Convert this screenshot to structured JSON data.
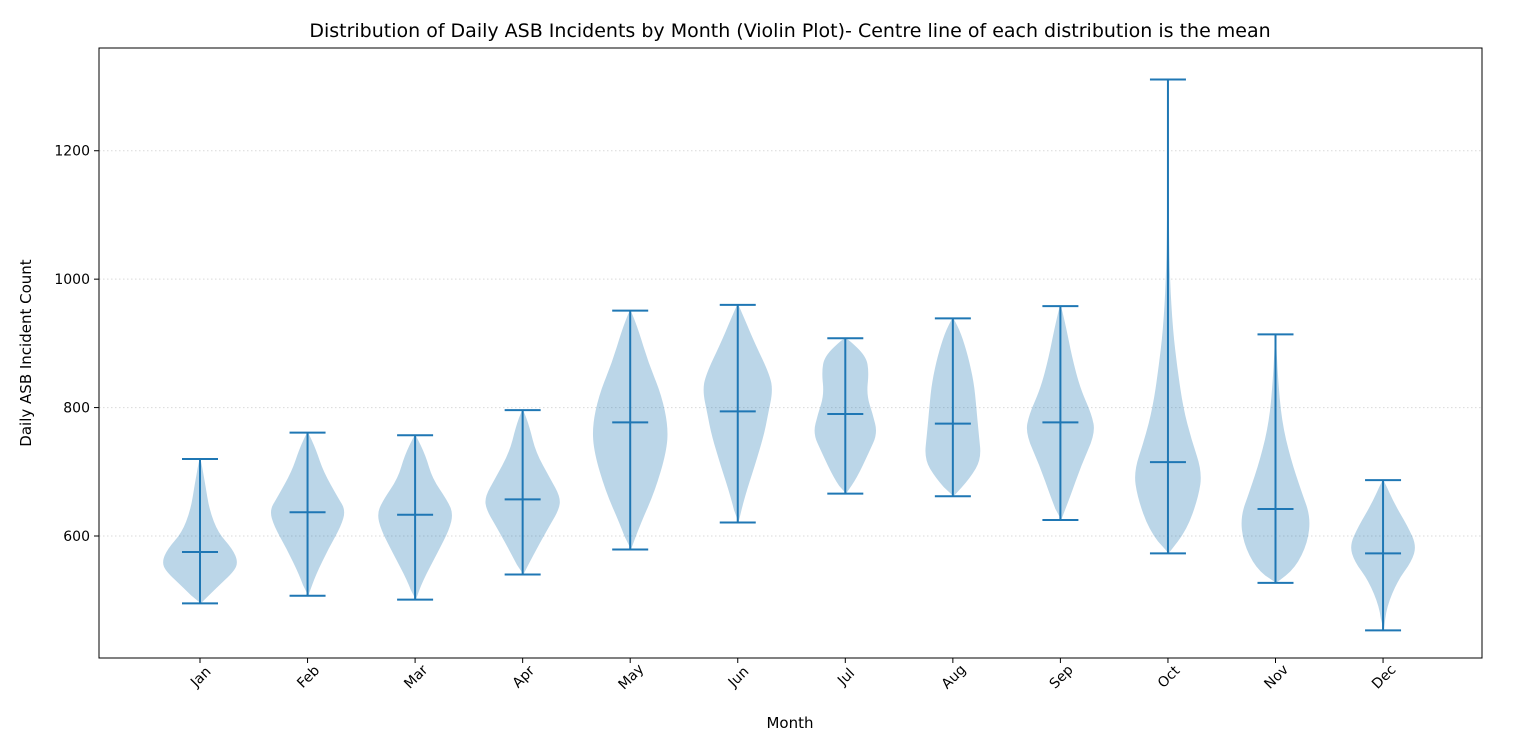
{
  "chart_data": {
    "type": "violin",
    "title": "Distribution of Daily ASB Incidents by Month (Violin Plot)- Centre line of each distribution is the mean",
    "xlabel": "Month",
    "ylabel": "Daily ASB Incident Count",
    "categories": [
      "Jan",
      "Feb",
      "Mar",
      "Apr",
      "May",
      "Jun",
      "Jul",
      "Aug",
      "Sep",
      "Oct",
      "Nov",
      "Dec"
    ],
    "ylim": [
      410,
      1360
    ],
    "yticks": [
      600,
      800,
      1000,
      1200
    ],
    "grid": "y-dotted",
    "colors": {
      "violin_fill": "#1f77b4",
      "violin_alpha": 0.3,
      "line": "#1f77b4",
      "grid": "#d9d9d9",
      "axis": "#000000"
    },
    "series": [
      {
        "category": "Jan",
        "min": 495,
        "mean": 575,
        "max": 720,
        "density": [
          [
            495,
            0.02
          ],
          [
            520,
            0.45
          ],
          [
            545,
            0.9
          ],
          [
            560,
            1.0
          ],
          [
            580,
            0.85
          ],
          [
            605,
            0.48
          ],
          [
            640,
            0.25
          ],
          [
            680,
            0.14
          ],
          [
            720,
            0.02
          ]
        ]
      },
      {
        "category": "Feb",
        "min": 507,
        "mean": 637,
        "max": 761,
        "density": [
          [
            507,
            0.02
          ],
          [
            540,
            0.22
          ],
          [
            580,
            0.55
          ],
          [
            615,
            0.88
          ],
          [
            640,
            1.0
          ],
          [
            660,
            0.8
          ],
          [
            700,
            0.42
          ],
          [
            735,
            0.22
          ],
          [
            761,
            0.02
          ]
        ]
      },
      {
        "category": "Mar",
        "min": 501,
        "mean": 633,
        "max": 757,
        "density": [
          [
            501,
            0.02
          ],
          [
            530,
            0.2
          ],
          [
            575,
            0.6
          ],
          [
            610,
            0.9
          ],
          [
            635,
            1.0
          ],
          [
            655,
            0.85
          ],
          [
            690,
            0.45
          ],
          [
            725,
            0.28
          ],
          [
            757,
            0.02
          ]
        ]
      },
      {
        "category": "Apr",
        "min": 540,
        "mean": 657,
        "max": 796,
        "density": [
          [
            540,
            0.02
          ],
          [
            570,
            0.28
          ],
          [
            610,
            0.65
          ],
          [
            640,
            0.95
          ],
          [
            660,
            1.0
          ],
          [
            690,
            0.72
          ],
          [
            730,
            0.35
          ],
          [
            770,
            0.18
          ],
          [
            796,
            0.02
          ]
        ]
      },
      {
        "category": "May",
        "min": 579,
        "mean": 777,
        "max": 951,
        "density": [
          [
            579,
            0.02
          ],
          [
            620,
            0.28
          ],
          [
            670,
            0.65
          ],
          [
            730,
            0.95
          ],
          [
            770,
            1.0
          ],
          [
            820,
            0.82
          ],
          [
            870,
            0.48
          ],
          [
            920,
            0.22
          ],
          [
            951,
            0.02
          ]
        ]
      },
      {
        "category": "Jun",
        "min": 621,
        "mean": 794,
        "max": 960,
        "density": [
          [
            621,
            0.02
          ],
          [
            660,
            0.18
          ],
          [
            710,
            0.45
          ],
          [
            755,
            0.68
          ],
          [
            790,
            0.8
          ],
          [
            825,
            0.92
          ],
          [
            850,
            0.85
          ],
          [
            900,
            0.45
          ],
          [
            935,
            0.2
          ],
          [
            960,
            0.02
          ]
        ]
      },
      {
        "category": "Jul",
        "min": 666,
        "mean": 790,
        "max": 908,
        "density": [
          [
            666,
            0.02
          ],
          [
            690,
            0.3
          ],
          [
            730,
            0.62
          ],
          [
            760,
            0.85
          ],
          [
            790,
            0.72
          ],
          [
            820,
            0.56
          ],
          [
            855,
            0.62
          ],
          [
            880,
            0.55
          ],
          [
            908,
            0.05
          ]
        ]
      },
      {
        "category": "Aug",
        "min": 662,
        "mean": 775,
        "max": 939,
        "density": [
          [
            662,
            0.02
          ],
          [
            690,
            0.45
          ],
          [
            720,
            0.75
          ],
          [
            760,
            0.68
          ],
          [
            800,
            0.62
          ],
          [
            840,
            0.55
          ],
          [
            880,
            0.4
          ],
          [
            915,
            0.22
          ],
          [
            939,
            0.02
          ]
        ]
      },
      {
        "category": "Sep",
        "min": 625,
        "mean": 777,
        "max": 958,
        "density": [
          [
            625,
            0.02
          ],
          [
            660,
            0.25
          ],
          [
            710,
            0.55
          ],
          [
            760,
            0.92
          ],
          [
            790,
            0.82
          ],
          [
            830,
            0.52
          ],
          [
            880,
            0.3
          ],
          [
            925,
            0.15
          ],
          [
            958,
            0.02
          ]
        ]
      },
      {
        "category": "Oct",
        "min": 573,
        "mean": 715,
        "max": 1311,
        "density": [
          [
            573,
            0.02
          ],
          [
            610,
            0.5
          ],
          [
            660,
            0.8
          ],
          [
            700,
            0.9
          ],
          [
            750,
            0.62
          ],
          [
            800,
            0.4
          ],
          [
            860,
            0.25
          ],
          [
            920,
            0.13
          ],
          [
            1000,
            0.05
          ],
          [
            1100,
            0.02
          ],
          [
            1311,
            0.0
          ]
        ]
      },
      {
        "category": "Nov",
        "min": 527,
        "mean": 642,
        "max": 914,
        "density": [
          [
            527,
            0.02
          ],
          [
            550,
            0.52
          ],
          [
            590,
            0.85
          ],
          [
            630,
            0.92
          ],
          [
            670,
            0.68
          ],
          [
            720,
            0.4
          ],
          [
            780,
            0.16
          ],
          [
            850,
            0.06
          ],
          [
            914,
            0.01
          ]
        ]
      },
      {
        "category": "Dec",
        "min": 453,
        "mean": 573,
        "max": 687,
        "density": [
          [
            453,
            0.02
          ],
          [
            490,
            0.1
          ],
          [
            530,
            0.38
          ],
          [
            560,
            0.75
          ],
          [
            585,
            0.88
          ],
          [
            615,
            0.65
          ],
          [
            650,
            0.3
          ],
          [
            687,
            0.02
          ]
        ]
      }
    ]
  }
}
